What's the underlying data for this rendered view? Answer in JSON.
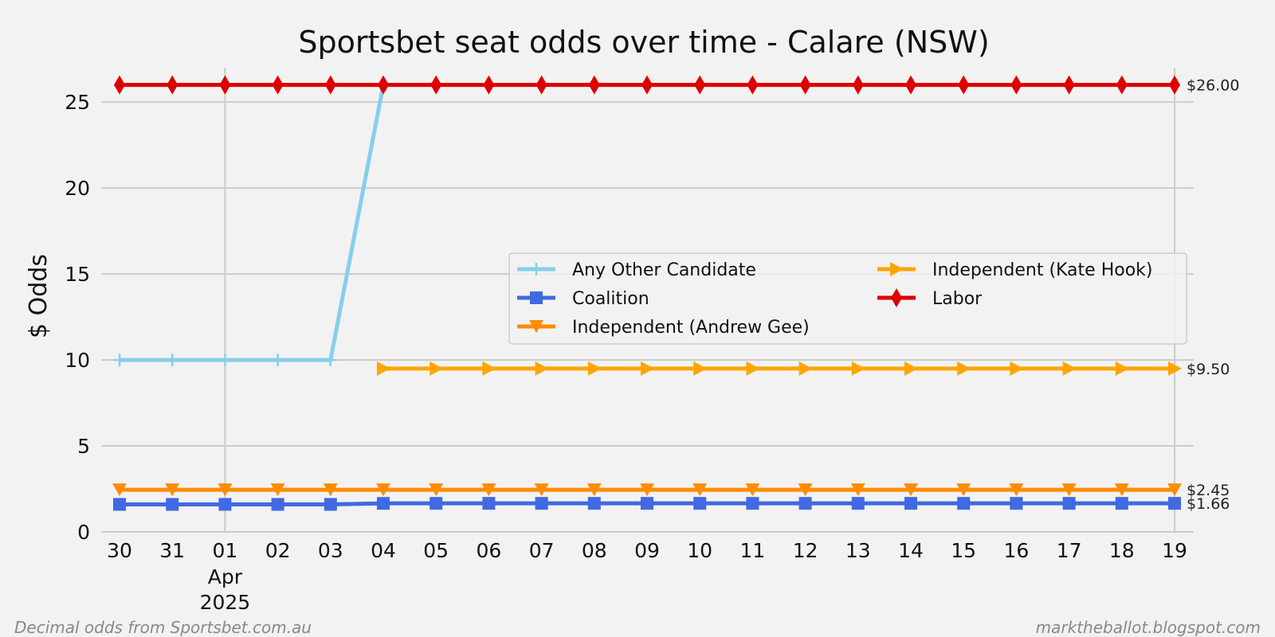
{
  "chart_data": {
    "type": "line",
    "title": "Sportsbet seat odds over time - Calare (NSW)",
    "xlabel": "",
    "ylabel": "$ Odds",
    "ylim": [
      0,
      27
    ],
    "yticks": [
      0,
      5,
      10,
      15,
      20,
      25
    ],
    "grid": true,
    "legend_placement": "center-right",
    "x": [
      "2025-03-30",
      "2025-03-31",
      "2025-04-01",
      "2025-04-02",
      "2025-04-03",
      "2025-04-04",
      "2025-04-05",
      "2025-04-06",
      "2025-04-07",
      "2025-04-08",
      "2025-04-09",
      "2025-04-10",
      "2025-04-11",
      "2025-04-12",
      "2025-04-13",
      "2025-04-14",
      "2025-04-15",
      "2025-04-16",
      "2025-04-17",
      "2025-04-18",
      "2025-04-19"
    ],
    "xtick_labels": [
      "30",
      "31",
      "01",
      "02",
      "03",
      "04",
      "05",
      "06",
      "07",
      "08",
      "09",
      "10",
      "11",
      "12",
      "13",
      "14",
      "15",
      "16",
      "17",
      "18",
      "19"
    ],
    "xtick_month": {
      "label": "Apr",
      "year": "2025"
    },
    "series": [
      {
        "name": "Any Other Candidate",
        "color": "#87ceeb",
        "marker": "plus",
        "values": [
          10,
          10,
          10,
          10,
          10,
          26,
          null,
          null,
          null,
          null,
          null,
          null,
          null,
          null,
          null,
          null,
          null,
          null,
          null,
          null,
          null
        ]
      },
      {
        "name": "Coalition",
        "color": "#4169e1",
        "marker": "square",
        "values": [
          1.6,
          1.6,
          1.6,
          1.6,
          1.6,
          1.66,
          1.66,
          1.66,
          1.66,
          1.66,
          1.66,
          1.66,
          1.66,
          1.66,
          1.66,
          1.66,
          1.66,
          1.66,
          1.66,
          1.66,
          1.66
        ]
      },
      {
        "name": "Independent (Andrew Gee)",
        "color": "#ff8c00",
        "marker": "triangle-down",
        "values": [
          2.45,
          2.45,
          2.45,
          2.45,
          2.45,
          2.45,
          2.45,
          2.45,
          2.45,
          2.45,
          2.45,
          2.45,
          2.45,
          2.45,
          2.45,
          2.45,
          2.45,
          2.45,
          2.45,
          2.45,
          2.45
        ]
      },
      {
        "name": "Independent (Kate Hook)",
        "color": "#ffa500",
        "marker": "triangle-right",
        "values": [
          null,
          null,
          null,
          null,
          null,
          9.5,
          9.5,
          9.5,
          9.5,
          9.5,
          9.5,
          9.5,
          9.5,
          9.5,
          9.5,
          9.5,
          9.5,
          9.5,
          9.5,
          9.5,
          9.5
        ]
      },
      {
        "name": "Labor",
        "color": "#dd0000",
        "marker": "diamond",
        "values": [
          26,
          26,
          26,
          26,
          26,
          26,
          26,
          26,
          26,
          26,
          26,
          26,
          26,
          26,
          26,
          26,
          26,
          26,
          26,
          26,
          26
        ]
      }
    ],
    "end_labels": [
      {
        "text": "$26.00",
        "value": 26
      },
      {
        "text": "$9.50",
        "value": 9.5
      },
      {
        "text": "$2.45",
        "value": 2.45
      },
      {
        "text": "$1.66",
        "value": 1.66
      }
    ]
  },
  "footer": {
    "left": "Decimal odds from Sportsbet.com.au",
    "right": "marktheballot.blogspot.com"
  }
}
